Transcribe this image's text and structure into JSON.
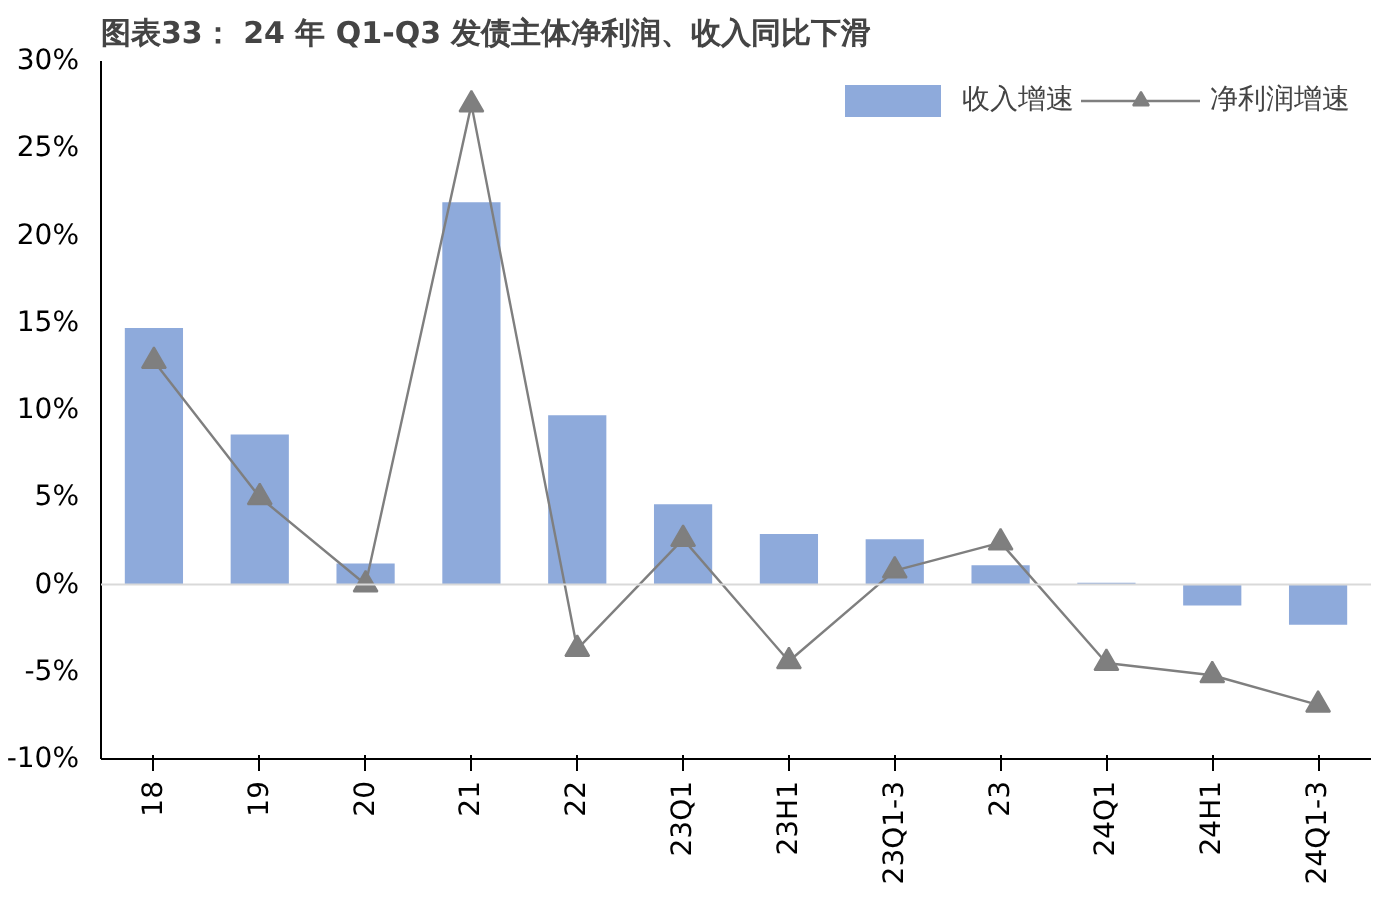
{
  "chart_data": {
    "type": "bar",
    "title": "图表33： 24 年 Q1-Q3 发债主体净利润、收入同比下滑",
    "categories": [
      "18",
      "19",
      "20",
      "21",
      "22",
      "23Q1",
      "23H1",
      "23Q1-3",
      "23",
      "24Q1",
      "24H1",
      "24Q1-3"
    ],
    "series": [
      {
        "name": "收入增速",
        "color": "#8eaadb",
        "values": [
          14.7,
          8.6,
          1.2,
          21.9,
          9.7,
          4.6,
          2.9,
          2.6,
          1.1,
          0.1,
          -1.2,
          -2.3
        ]
      },
      {
        "name": "净利润增速",
        "type": "line",
        "color": "#7f7f7f",
        "marker": "triangle",
        "values": [
          12.8,
          5.0,
          0.0,
          27.5,
          -3.7,
          2.6,
          -4.4,
          0.8,
          2.4,
          -4.5,
          -5.2,
          -6.9
        ]
      }
    ],
    "ylim": [
      -10,
      30
    ],
    "yticks": [
      {
        "value": -10,
        "label": "-10%"
      },
      {
        "value": -5,
        "label": "-5%"
      },
      {
        "value": 0,
        "label": "0%"
      },
      {
        "value": 5,
        "label": "5%"
      },
      {
        "value": 10,
        "label": "10%"
      },
      {
        "value": 15,
        "label": "15%"
      },
      {
        "value": 20,
        "label": "20%"
      },
      {
        "value": 25,
        "label": "25%"
      },
      {
        "value": 30,
        "label": "30%"
      }
    ],
    "legend": "top right"
  }
}
